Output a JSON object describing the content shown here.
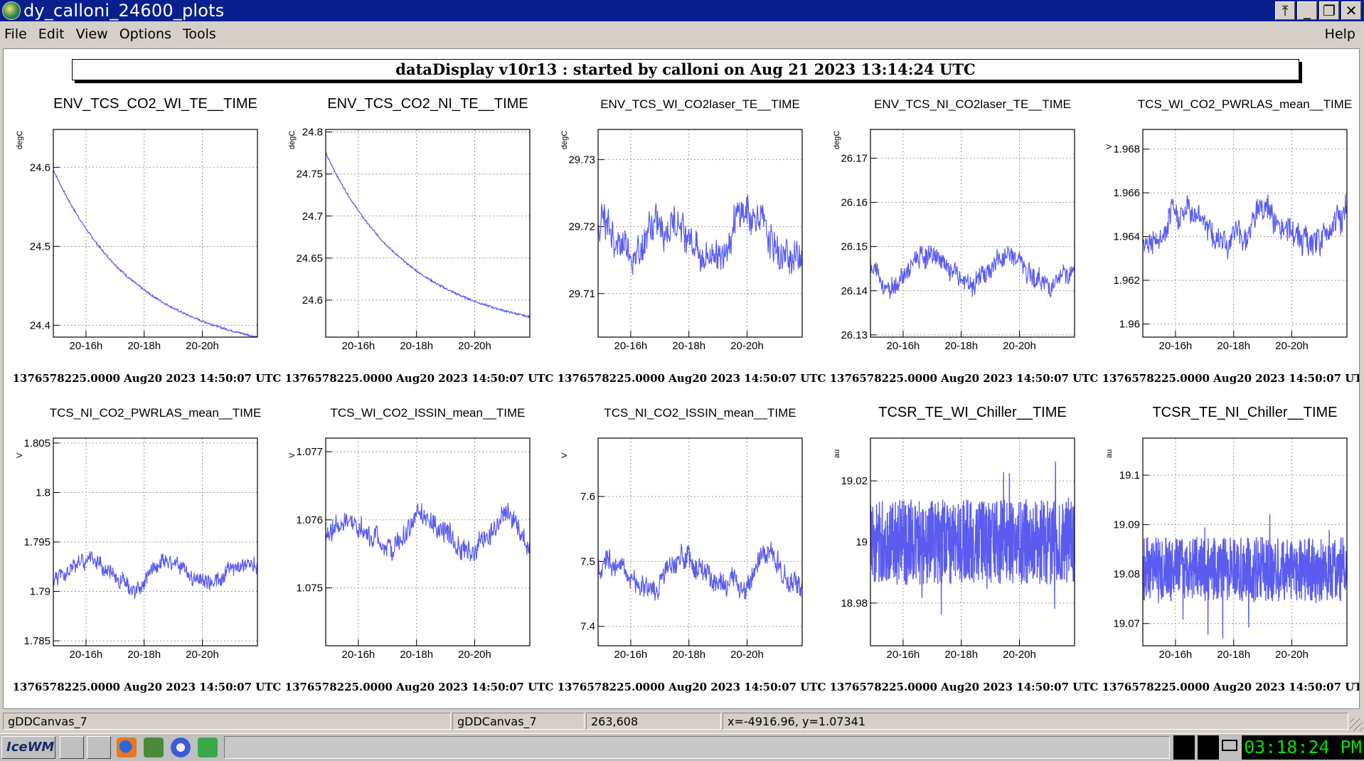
{
  "window": {
    "title": "dy_calloni_24600_plots"
  },
  "menu": {
    "file": "File",
    "edit": "Edit",
    "view": "View",
    "options": "Options",
    "tools": "Tools",
    "help": "Help"
  },
  "banner": "dataDisplay v10r13 : started by calloni on Aug 21 2023 13:14:24 UTC",
  "footer_text": "1376578225.0000 Aug20 2023 14:50:07 UTC",
  "x_ticks": [
    "20-16h",
    "20-18h",
    "20-20h"
  ],
  "plots": [
    {
      "title": "ENV_TCS_CO2_WI_TE__TIME",
      "unit": "degC",
      "yticks": [
        "24.4",
        "24.5",
        "24.6"
      ],
      "ylim": [
        24.385,
        24.648
      ],
      "tickvals": [
        24.4,
        24.5,
        24.6
      ],
      "shape": "decay",
      "params": {
        "start": 24.597,
        "end": 24.385
      }
    },
    {
      "title": "ENV_TCS_CO2_NI_TE__TIME",
      "unit": "degC",
      "yticks": [
        "24.6",
        "24.65",
        "24.7",
        "24.75",
        "24.8"
      ],
      "ylim": [
        24.556,
        24.803
      ],
      "tickvals": [
        24.6,
        24.65,
        24.7,
        24.75,
        24.8
      ],
      "shape": "decay",
      "params": {
        "start": 24.775,
        "end": 24.58
      }
    },
    {
      "title": "ENV_TCS_WI_CO2laser_TE__TIME",
      "unit": "degC",
      "yticks": [
        "29.71",
        "29.72",
        "29.73"
      ],
      "ylim": [
        29.7035,
        29.7345
      ],
      "tickvals": [
        29.71,
        29.72,
        29.73
      ],
      "shape": "noisy",
      "params": {
        "base": 29.7185,
        "noise": 0.0028
      }
    },
    {
      "title": "ENV_TCS_NI_CO2laser_TE__TIME",
      "unit": "degC",
      "yticks": [
        "26.13",
        "26.14",
        "26.15",
        "26.16",
        "26.17"
      ],
      "ylim": [
        26.1295,
        26.1765
      ],
      "tickvals": [
        26.13,
        26.14,
        26.15,
        26.16,
        26.17
      ],
      "shape": "noisy",
      "params": {
        "base": 26.145,
        "noise": 0.0026
      }
    },
    {
      "title": "TCS_WI_CO2_PWRLAS_mean__TIME",
      "unit": "V",
      "yticks": [
        "1.96",
        "1.962",
        "1.964",
        "1.966",
        "1.968"
      ],
      "ylim": [
        1.9594,
        1.9689
      ],
      "tickvals": [
        1.96,
        1.962,
        1.964,
        1.966,
        1.968
      ],
      "shape": "noisy",
      "params": {
        "base": 1.9645,
        "noise": 0.0007
      }
    },
    {
      "title": "TCS_NI_CO2_PWRLAS_mean__TIME",
      "unit": "V",
      "yticks": [
        "1.785",
        "1.79",
        "1.795",
        "1.8",
        "1.805"
      ],
      "ylim": [
        1.7845,
        1.8055
      ],
      "tickvals": [
        1.785,
        1.79,
        1.795,
        1.8,
        1.805
      ],
      "shape": "noisy",
      "params": {
        "base": 1.792,
        "noise": 0.0009
      }
    },
    {
      "title": "TCS_WI_CO2_ISSIN_mean__TIME",
      "unit": "V",
      "yticks": [
        "1.075",
        "1.076",
        "1.077"
      ],
      "ylim": [
        1.07415,
        1.0772
      ],
      "tickvals": [
        1.075,
        1.076,
        1.077
      ],
      "shape": "noisy",
      "params": {
        "base": 1.0758,
        "noise": 0.00018
      }
    },
    {
      "title": "TCS_NI_CO2_ISSIN_mean__TIME",
      "unit": "V",
      "yticks": [
        "7.4",
        "7.5",
        "7.6"
      ],
      "ylim": [
        7.37,
        7.69
      ],
      "tickvals": [
        7.4,
        7.5,
        7.6
      ],
      "shape": "noisy",
      "params": {
        "base": 7.48,
        "noise": 0.02
      }
    },
    {
      "title": "TCSR_TE_WI_Chiller__TIME",
      "unit": "au",
      "yticks": [
        "18.98",
        "19",
        "19.02"
      ],
      "ylim": [
        18.966,
        19.034
      ],
      "tickvals": [
        18.98,
        19.0,
        19.02
      ],
      "shape": "band",
      "params": {
        "base": 19.0,
        "noise": 0.014
      }
    },
    {
      "title": "TCSR_TE_NI_Chiller__TIME",
      "unit": "au",
      "yticks": [
        "19.07",
        "19.08",
        "19.09",
        "19.1"
      ],
      "ylim": [
        19.0655,
        19.1075
      ],
      "tickvals": [
        19.07,
        19.08,
        19.09,
        19.1
      ],
      "shape": "band",
      "params": {
        "base": 19.081,
        "noise": 0.0065
      }
    }
  ],
  "status": {
    "cell1": "gDDCanvas_7",
    "cell2": "gDDCanvas_7",
    "cell3": "263,608",
    "cell4": "x=-4916.96, y=1.07341"
  },
  "taskbar": {
    "start": "IceWM",
    "clock": "03:18:24 PM"
  },
  "colors": {
    "line": "#5a5cf0",
    "titlebar": "#0a1f8e",
    "clock": "#00e000"
  },
  "icons": [
    "app-icon",
    "unshade-icon",
    "minimize-icon",
    "maximize-icon",
    "close-icon",
    "firefox-icon",
    "settings-icon",
    "browser-icon",
    "spreadsheet-icon",
    "mail-icon"
  ]
}
